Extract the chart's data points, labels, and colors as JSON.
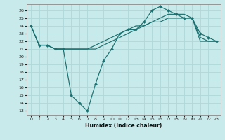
{
  "title": "",
  "xlabel": "Humidex (Indice chaleur)",
  "bg_color": "#c8eaea",
  "grid_color": "#b0d8d8",
  "line_color": "#1a7070",
  "xlim": [
    -0.5,
    23.5
  ],
  "ylim": [
    12.5,
    26.8
  ],
  "xticks": [
    0,
    1,
    2,
    3,
    4,
    5,
    6,
    7,
    8,
    9,
    10,
    11,
    12,
    13,
    14,
    15,
    16,
    17,
    18,
    19,
    20,
    21,
    22,
    23
  ],
  "yticks": [
    13,
    14,
    15,
    16,
    17,
    18,
    19,
    20,
    21,
    22,
    23,
    24,
    25,
    26
  ],
  "line1_x": [
    0,
    1,
    2,
    3,
    4,
    5,
    6,
    7,
    8,
    9,
    10,
    11,
    12,
    13,
    14,
    15,
    16,
    17,
    18,
    19,
    20,
    21,
    22,
    23
  ],
  "line1_y": [
    24,
    21.5,
    21.5,
    21,
    21,
    15,
    14,
    13,
    16.5,
    19.5,
    21,
    23,
    23.5,
    23.5,
    24.5,
    26,
    26.5,
    26,
    25.5,
    25,
    25,
    23,
    22.5,
    22
  ],
  "line2_x": [
    0,
    1,
    2,
    3,
    4,
    5,
    6,
    7,
    8,
    9,
    10,
    11,
    12,
    13,
    14,
    15,
    16,
    17,
    18,
    19,
    20,
    21,
    22,
    23
  ],
  "line2_y": [
    24,
    21.5,
    21.5,
    21,
    21,
    21,
    21,
    21,
    21,
    21.5,
    22,
    22.5,
    23,
    23.5,
    24,
    24.5,
    24.5,
    25,
    25,
    25,
    25,
    22,
    22,
    22
  ],
  "line3_x": [
    0,
    1,
    2,
    3,
    4,
    5,
    6,
    7,
    8,
    9,
    10,
    11,
    12,
    13,
    14,
    15,
    16,
    17,
    18,
    19,
    20,
    21,
    22,
    23
  ],
  "line3_y": [
    24,
    21.5,
    21.5,
    21,
    21,
    21,
    21,
    21,
    21.5,
    22,
    22.5,
    23,
    23.5,
    24,
    24,
    24.5,
    25,
    25.5,
    25.5,
    25.5,
    25,
    22.5,
    22,
    22
  ]
}
